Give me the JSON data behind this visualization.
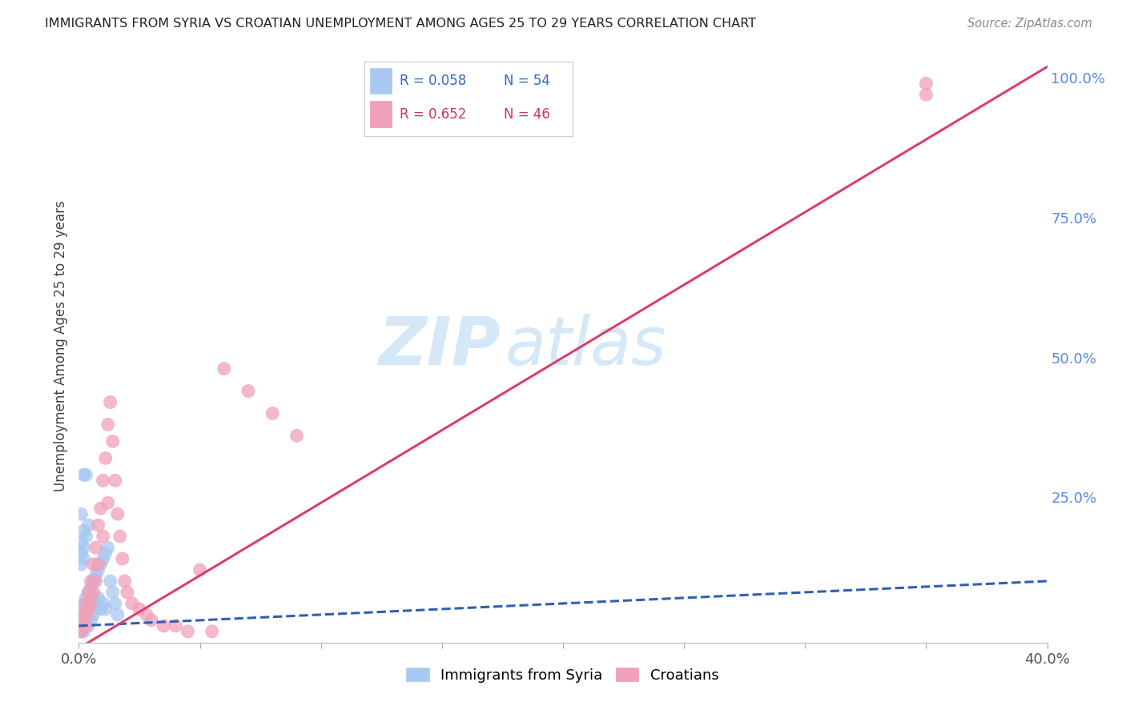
{
  "title": "IMMIGRANTS FROM SYRIA VS CROATIAN UNEMPLOYMENT AMONG AGES 25 TO 29 YEARS CORRELATION CHART",
  "source": "Source: ZipAtlas.com",
  "ylabel": "Unemployment Among Ages 25 to 29 years",
  "xlim": [
    0.0,
    0.4
  ],
  "ylim": [
    -0.01,
    1.05
  ],
  "xticks": [
    0.0,
    0.05,
    0.1,
    0.15,
    0.2,
    0.25,
    0.3,
    0.35,
    0.4
  ],
  "yticks_right": [
    0.0,
    0.25,
    0.5,
    0.75,
    1.0
  ],
  "yticklabels_right": [
    "",
    "25.0%",
    "50.0%",
    "75.0%",
    "100.0%"
  ],
  "blue_color": "#a8c8f0",
  "pink_color": "#f0a0b8",
  "blue_line_color": "#3060b0",
  "pink_line_color": "#d84070",
  "watermark_zip": "ZIP",
  "watermark_atlas": "atlas",
  "legend_label_blue": "Immigrants from Syria",
  "legend_label_pink": "Croatians",
  "blue_scatter_x": [
    0.001,
    0.001,
    0.001,
    0.001,
    0.001,
    0.002,
    0.002,
    0.002,
    0.002,
    0.002,
    0.002,
    0.003,
    0.003,
    0.003,
    0.003,
    0.003,
    0.004,
    0.004,
    0.004,
    0.004,
    0.005,
    0.005,
    0.005,
    0.005,
    0.006,
    0.006,
    0.006,
    0.007,
    0.007,
    0.008,
    0.008,
    0.009,
    0.009,
    0.01,
    0.01,
    0.011,
    0.011,
    0.012,
    0.013,
    0.014,
    0.015,
    0.016,
    0.003,
    0.002,
    0.001,
    0.004,
    0.002,
    0.003,
    0.001,
    0.002,
    0.001,
    0.002,
    0.001,
    0.002
  ],
  "blue_scatter_y": [
    0.05,
    0.04,
    0.03,
    0.02,
    0.01,
    0.06,
    0.05,
    0.04,
    0.03,
    0.02,
    0.01,
    0.07,
    0.06,
    0.05,
    0.04,
    0.03,
    0.08,
    0.06,
    0.04,
    0.02,
    0.09,
    0.07,
    0.05,
    0.03,
    0.1,
    0.07,
    0.04,
    0.11,
    0.06,
    0.12,
    0.07,
    0.13,
    0.05,
    0.14,
    0.06,
    0.15,
    0.05,
    0.16,
    0.1,
    0.08,
    0.06,
    0.04,
    0.29,
    0.29,
    0.22,
    0.2,
    0.19,
    0.18,
    0.17,
    0.16,
    0.15,
    0.14,
    0.13,
    0.03
  ],
  "pink_scatter_x": [
    0.001,
    0.001,
    0.002,
    0.002,
    0.003,
    0.003,
    0.003,
    0.004,
    0.004,
    0.005,
    0.005,
    0.006,
    0.006,
    0.007,
    0.007,
    0.008,
    0.008,
    0.009,
    0.01,
    0.01,
    0.011,
    0.012,
    0.012,
    0.013,
    0.014,
    0.015,
    0.016,
    0.017,
    0.018,
    0.019,
    0.02,
    0.022,
    0.025,
    0.028,
    0.03,
    0.035,
    0.04,
    0.045,
    0.05,
    0.055,
    0.06,
    0.07,
    0.08,
    0.09,
    0.35,
    0.35
  ],
  "pink_scatter_y": [
    0.02,
    0.01,
    0.04,
    0.02,
    0.06,
    0.04,
    0.02,
    0.08,
    0.05,
    0.1,
    0.06,
    0.13,
    0.08,
    0.16,
    0.1,
    0.2,
    0.13,
    0.23,
    0.28,
    0.18,
    0.32,
    0.38,
    0.24,
    0.42,
    0.35,
    0.28,
    0.22,
    0.18,
    0.14,
    0.1,
    0.08,
    0.06,
    0.05,
    0.04,
    0.03,
    0.02,
    0.02,
    0.01,
    0.12,
    0.01,
    0.48,
    0.44,
    0.4,
    0.36,
    0.97,
    0.99
  ],
  "blue_trend_x": [
    0.0,
    0.4
  ],
  "blue_trend_y": [
    0.02,
    0.1
  ],
  "pink_trend_x": [
    0.0,
    0.4
  ],
  "pink_trend_y": [
    -0.02,
    1.02
  ],
  "background_color": "#ffffff",
  "grid_color": "#cccccc"
}
